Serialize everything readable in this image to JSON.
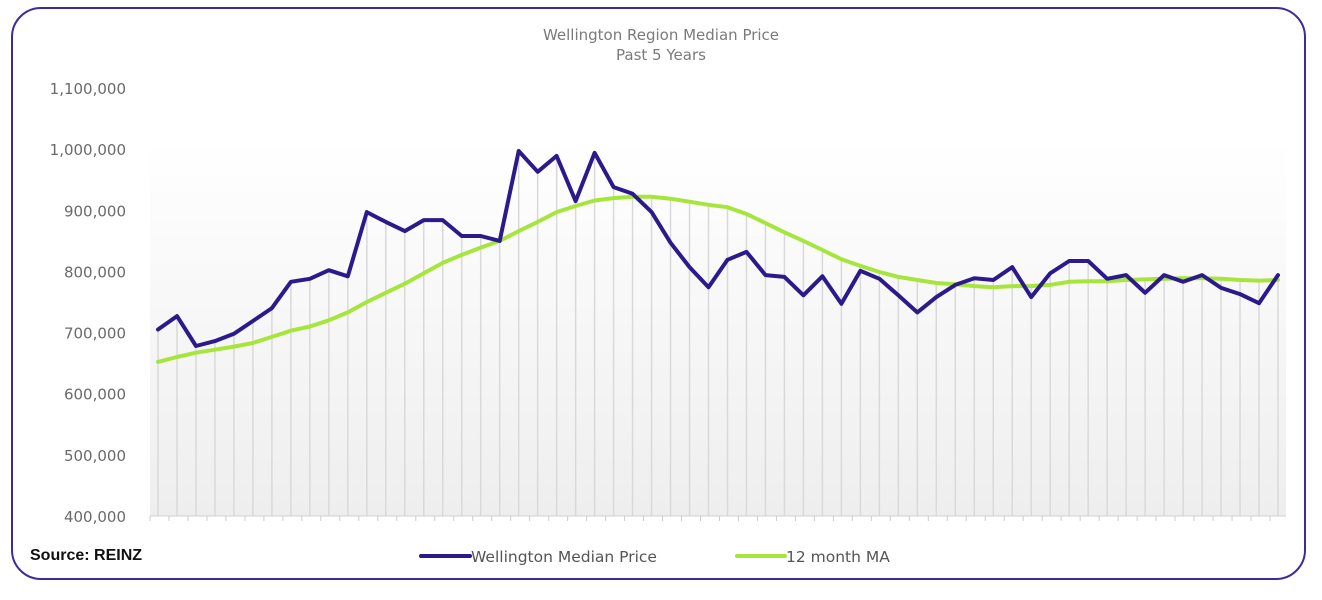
{
  "chart_data": {
    "type": "line",
    "title": "Wellington Region Median Price",
    "subtitle": "Past 5 Years",
    "xlabel": "",
    "ylabel": "",
    "ylim": [
      400000,
      1100000
    ],
    "yticks": [
      400000,
      500000,
      600000,
      700000,
      800000,
      900000,
      1000000,
      1100000
    ],
    "ytick_labels": [
      "400,000",
      "500,000",
      "600,000",
      "700,000",
      "800,000",
      "900,000",
      "1,000,000",
      "1,100,000"
    ],
    "x_count": 60,
    "x_tick_labels": [],
    "grid": "drop-lines",
    "legend_position": "bottom",
    "series": [
      {
        "name": "Wellington Median Price",
        "color": "#2b1a8c",
        "values": [
          705000,
          727000,
          678000,
          686000,
          698000,
          719000,
          740000,
          783000,
          788000,
          802000,
          792000,
          897000,
          881000,
          866000,
          884000,
          884000,
          858000,
          858000,
          850000,
          997000,
          963000,
          989000,
          915000,
          994000,
          938000,
          927000,
          897000,
          847000,
          807000,
          774000,
          819000,
          832000,
          794000,
          791000,
          761000,
          792000,
          747000,
          801000,
          788000,
          761000,
          733000,
          758000,
          778000,
          789000,
          786000,
          807000,
          758000,
          797000,
          817000,
          817000,
          788000,
          794000,
          765000,
          794000,
          783000,
          794000,
          773000,
          763000,
          748000,
          794000
        ]
      },
      {
        "name": "12 month MA",
        "color": "#a6e63c",
        "values": [
          652000,
          660000,
          667000,
          672000,
          677000,
          683000,
          693000,
          703000,
          710000,
          720000,
          733000,
          750000,
          765000,
          780000,
          797000,
          814000,
          827000,
          839000,
          850000,
          866000,
          881000,
          897000,
          907000,
          916000,
          920000,
          922000,
          922000,
          919000,
          914000,
          909000,
          905000,
          894000,
          879000,
          864000,
          850000,
          835000,
          820000,
          809000,
          799000,
          791000,
          786000,
          781000,
          779000,
          776000,
          774000,
          776000,
          776000,
          778000,
          783000,
          784000,
          784000,
          786000,
          787000,
          788000,
          789000,
          789000,
          788000,
          786000,
          785000,
          786000
        ]
      }
    ]
  },
  "source_label": "Source: REINZ",
  "colors": {
    "frame": "#3b2c9c",
    "median_line": "#2b1a8c",
    "ma_line": "#a6e63c"
  }
}
